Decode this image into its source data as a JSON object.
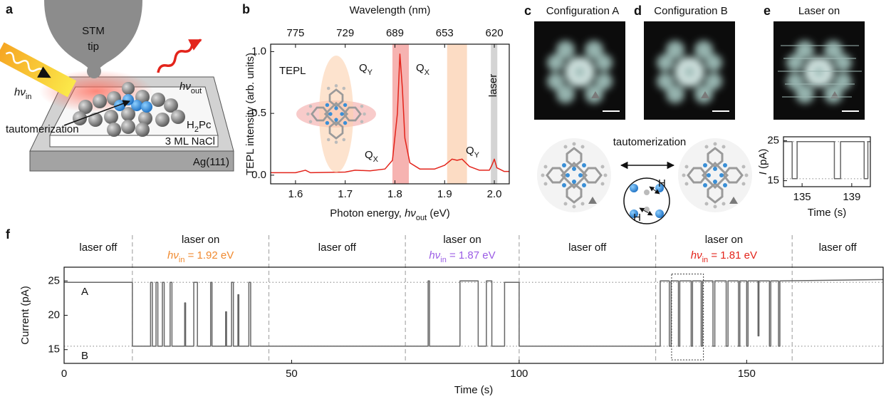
{
  "panel_labels": [
    "a",
    "b",
    "c",
    "d",
    "e",
    "f"
  ],
  "schematic": {
    "tip": [
      "STM",
      "tip"
    ],
    "h_nu_in": [
      "hν",
      "in"
    ],
    "h_nu_out": [
      "hν",
      "out"
    ],
    "tautomerization": "tautomerization",
    "molecule": [
      "H",
      "2",
      "Pc"
    ],
    "layer": "3 ML NaCl",
    "substrate": "Ag(111)"
  },
  "images": [
    {
      "title": "Configuration A"
    },
    {
      "title": "Configuration B"
    },
    {
      "title": "Laser on"
    }
  ],
  "tautomer_scheme": {
    "label": "tautomerization",
    "atoms": [
      "H",
      "H"
    ]
  },
  "chart_data": [
    {
      "type": "line",
      "xlabel": [
        "Photon energy, ",
        "hν",
        "out",
        " (eV)"
      ],
      "ylabel": "TEPL intensity (arb. units)",
      "x2label": "Wavelength (nm)",
      "x": [
        1.55,
        1.6,
        1.62,
        1.63,
        1.7,
        1.72,
        1.75,
        1.78,
        1.795,
        1.805,
        1.81,
        1.815,
        1.82,
        1.83,
        1.85,
        1.88,
        1.9,
        1.915,
        1.925,
        1.935,
        1.95,
        1.97,
        1.99,
        1.995,
        2.0,
        2.005,
        2.02,
        2.03
      ],
      "values": [
        0.02,
        0.02,
        0.04,
        0.02,
        0.025,
        0.04,
        0.035,
        0.05,
        0.12,
        0.5,
        0.98,
        0.7,
        0.3,
        0.1,
        0.05,
        0.05,
        0.08,
        0.13,
        0.12,
        0.13,
        0.07,
        0.04,
        0.04,
        0.08,
        0.13,
        0.06,
        0.03,
        0.03
      ],
      "color": "#e3241b",
      "xlim": [
        1.55,
        2.03
      ],
      "ylim": [
        -0.07,
        1.06
      ],
      "xticks": [
        1.6,
        1.7,
        1.8,
        1.9,
        {
          "value": 2,
          "label": "2.0"
        }
      ],
      "yticks": [
        {
          "value": 0,
          "label": "0.0"
        },
        0.5,
        {
          "value": 1,
          "label": "1.0"
        }
      ],
      "x2ticks": [
        {
          "value": 1.6,
          "label": "775"
        },
        {
          "value": 1.7,
          "label": "729"
        },
        {
          "value": 1.8,
          "label": "689"
        },
        {
          "value": 1.9,
          "label": "653"
        },
        {
          "value": 2,
          "label": "620"
        }
      ],
      "bands": [
        {
          "range": [
            1.795,
            1.828
          ],
          "color": "#f6b3b1"
        },
        {
          "range": [
            1.905,
            1.945
          ],
          "color": "#fcdcc4"
        },
        {
          "range": [
            1.993,
            2.006
          ],
          "color": "#d4d4d4"
        }
      ],
      "annotations": {
        "tepl": "TEPL",
        "qy_inset": [
          "Q",
          "Y"
        ],
        "qx_inset": [
          "Q",
          "X"
        ],
        "qx_peak": [
          "Q",
          "X"
        ],
        "qy_peak": [
          "Q",
          "Y"
        ],
        "laser": "laser"
      }
    },
    {
      "type": "line",
      "xlabel": "Time (s)",
      "ylabel": [
        "I",
        " (pA)"
      ],
      "x": [
        133.5,
        134.2,
        134.2,
        134.6,
        134.6,
        137.6,
        137.6,
        138.1,
        138.1,
        140,
        140,
        140.3,
        140.3,
        140.5
      ],
      "values": [
        24.8,
        24.8,
        15.5,
        15.5,
        24.8,
        24.8,
        15.5,
        15.5,
        24.8,
        24.8,
        15.5,
        15.5,
        24.8,
        24.8
      ],
      "color": "#666666",
      "xlim": [
        133.5,
        140.5
      ],
      "ylim": [
        13.5,
        26
      ],
      "xticks": [
        135,
        139
      ],
      "yticks": [
        15,
        25
      ],
      "reference_lines": [
        24.8,
        15.5
      ]
    },
    {
      "type": "line",
      "xlabel": "Time (s)",
      "ylabel": "Current (pA)",
      "x": [
        0,
        15,
        15,
        19,
        19,
        19.4,
        19.4,
        20.2,
        20.2,
        20.6,
        20.6,
        21.6,
        21.6,
        22,
        22,
        23.3,
        23.3,
        23.7,
        23.7,
        26.5,
        26.5,
        26.7,
        26.7,
        28.5,
        28.5,
        29.3,
        29.3,
        32.2,
        32.2,
        32.5,
        32.5,
        35.5,
        35.5,
        35.7,
        35.7,
        36.8,
        36.8,
        37.2,
        37.2,
        38.2,
        38.2,
        38.4,
        38.4,
        40.6,
        40.6,
        41,
        41,
        80,
        80,
        80.3,
        80.3,
        87,
        87,
        91,
        91,
        92.8,
        92.8,
        94,
        94,
        96.8,
        96.8,
        100,
        100,
        131,
        131,
        133,
        133,
        133.4,
        133.4,
        135,
        135,
        135.3,
        135.3,
        137.8,
        137.8,
        138.1,
        138.1,
        140,
        140,
        140.3,
        140.3,
        142.6,
        142.6,
        143,
        143,
        145.5,
        145.5,
        145.9,
        145.9,
        148.2,
        148.2,
        148.5,
        148.5,
        150,
        150,
        150.3,
        150.3,
        152.5,
        152.5,
        152.7,
        152.7,
        155,
        155,
        155.3,
        155.3,
        157,
        157,
        157.3,
        157.3,
        180
      ],
      "values": [
        24.8,
        24.8,
        15.5,
        15.5,
        24.8,
        24.8,
        15.5,
        15.5,
        24.8,
        24.8,
        15.5,
        15.5,
        24.8,
        24.8,
        15.5,
        15.5,
        24.8,
        24.8,
        15.5,
        15.5,
        21.8,
        21.8,
        15.5,
        15.5,
        24.8,
        24.8,
        15.5,
        15.5,
        24.8,
        24.8,
        15.5,
        15.5,
        20.5,
        20.5,
        15.5,
        15.5,
        24.8,
        24.8,
        15.5,
        15.5,
        23,
        23,
        15.5,
        15.5,
        24.8,
        24.8,
        15.5,
        15.5,
        25,
        25,
        15.5,
        15.5,
        25,
        25,
        15.5,
        15.5,
        25,
        25,
        15.5,
        15.5,
        24.8,
        24.8,
        15.5,
        15.5,
        25,
        25,
        15.5,
        15.5,
        25,
        25,
        15.5,
        15.5,
        25,
        25,
        15.5,
        15.5,
        25,
        25,
        15.5,
        15.5,
        25,
        25,
        15.5,
        15.5,
        25,
        25,
        15.5,
        15.5,
        25,
        25,
        15.5,
        15.5,
        25,
        25,
        15.5,
        15.5,
        25,
        25,
        17,
        17,
        25,
        25,
        15.5,
        15.5,
        25,
        25,
        15.5,
        15.5,
        25,
        25.2
      ],
      "color": "#666666",
      "xlim": [
        0,
        180
      ],
      "ylim": [
        13,
        27
      ],
      "xticks": [
        0,
        50,
        100,
        150
      ],
      "yticks": [
        15,
        20,
        25
      ],
      "reference_lines": [
        24.8,
        15.5
      ],
      "state_labels": [
        "A",
        "B"
      ],
      "dividers": [
        15,
        45,
        75,
        100,
        130,
        160
      ],
      "segments": [
        {
          "label": "laser off"
        },
        {
          "label": "laser on",
          "excitation": [
            "hν",
            "in",
            " = 1.92 eV"
          ],
          "color": "#f08a30"
        },
        {
          "label": "laser off"
        },
        {
          "label": "laser on",
          "excitation": [
            "hν",
            "in",
            " = 1.87 eV"
          ],
          "color": "#9b5de5"
        },
        {
          "label": "laser off"
        },
        {
          "label": "laser on",
          "excitation": [
            "hν",
            "in",
            " = 1.81 eV"
          ],
          "color": "#e3241b"
        },
        {
          "label": "laser off"
        }
      ]
    }
  ]
}
